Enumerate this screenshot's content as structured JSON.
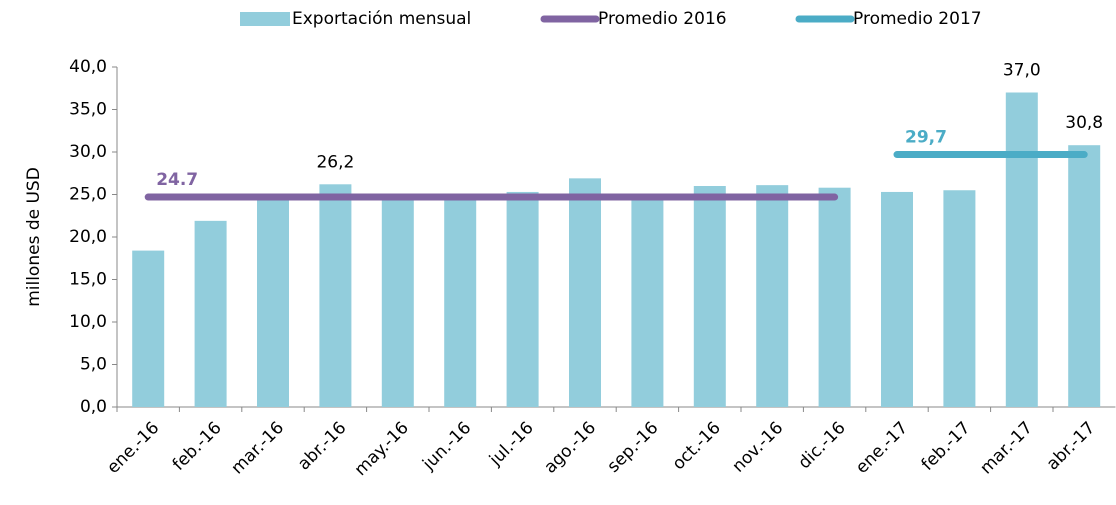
{
  "chart_data": {
    "type": "bar",
    "y_label": "millones de USD",
    "categories": [
      "ene.-16",
      "feb.-16",
      "mar.-16",
      "abr.-16",
      "may.-16",
      "jun.-16",
      "jul.-16",
      "ago.-16",
      "sep.-16",
      "oct.-16",
      "nov.-16",
      "dic.-16",
      "ene.-17",
      "feb.-17",
      "mar.-17",
      "abr.-17"
    ],
    "series": [
      {
        "name": "Exportación mensual",
        "type": "bar",
        "color": "#92cddc",
        "values": [
          18.4,
          21.9,
          24.5,
          26.2,
          24.6,
          24.5,
          25.3,
          26.9,
          24.6,
          26.0,
          26.1,
          25.8,
          25.3,
          25.5,
          37.0,
          30.8
        ],
        "value_labels": [
          null,
          null,
          null,
          "26,2",
          null,
          null,
          null,
          null,
          null,
          null,
          null,
          null,
          null,
          null,
          "37,0",
          "30,8"
        ]
      },
      {
        "name": "Promedio 2016",
        "type": "line",
        "color": "#8064a2",
        "values": [
          24.7,
          24.7,
          24.7,
          24.7,
          24.7,
          24.7,
          24.7,
          24.7,
          24.7,
          24.7,
          24.7,
          24.7,
          null,
          null,
          null,
          null
        ],
        "label": "24.7"
      },
      {
        "name": "Promedio 2017",
        "type": "line",
        "color": "#4bacc6",
        "values": [
          null,
          null,
          null,
          null,
          null,
          null,
          null,
          null,
          null,
          null,
          null,
          null,
          29.7,
          29.7,
          29.7,
          29.7
        ],
        "label": "29,7"
      }
    ],
    "ylim": [
      0,
      40
    ],
    "yticks": [
      {
        "value": 0,
        "label": "0,0"
      },
      {
        "value": 5,
        "label": "5,0"
      },
      {
        "value": 10,
        "label": "10,0"
      },
      {
        "value": 15,
        "label": "15,0"
      },
      {
        "value": 20,
        "label": "20,0"
      },
      {
        "value": 25,
        "label": "25,0"
      },
      {
        "value": 30,
        "label": "30,0"
      },
      {
        "value": 35,
        "label": "35,0"
      },
      {
        "value": 40,
        "label": "40,0"
      }
    ],
    "legend": "top"
  }
}
